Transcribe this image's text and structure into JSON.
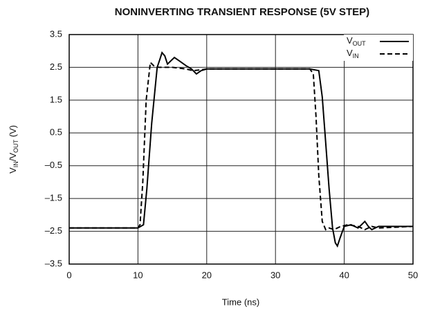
{
  "chart_data": {
    "type": "line",
    "title": "NONINVERTING TRANSIENT RESPONSE (5V STEP)",
    "xlabel": "Time (ns)",
    "ylabel": {
      "text": "V",
      "sub1": "IN",
      "mid": "/V",
      "sub2": "OUT",
      "tail": " (V)"
    },
    "xlim": [
      0,
      50
    ],
    "xticks": [
      0,
      10,
      20,
      30,
      40,
      50
    ],
    "ylim": [
      -3.5,
      3.5
    ],
    "yticks": [
      {
        "value": -3.5,
        "label": "–3.5"
      },
      {
        "value": -2.5,
        "label": "–2.5"
      },
      {
        "value": -1.5,
        "label": "–1.5"
      },
      {
        "value": -0.5,
        "label": "–0.5"
      },
      0.5,
      1.5,
      2.5,
      3.5
    ],
    "grid": true,
    "legend": "upper right",
    "series": [
      {
        "name": {
          "text": "V",
          "sub": "OUT"
        },
        "color": "#000000",
        "dash": "solid",
        "x": [
          0,
          5,
          10,
          10.8,
          11.3,
          12,
          12.8,
          13.2,
          13.5,
          13.9,
          14.3,
          14.8,
          15.3,
          16,
          17,
          17.8,
          18.5,
          19.2,
          20,
          25,
          30,
          35,
          36.3,
          36.8,
          37.3,
          37.8,
          38.3,
          38.7,
          39,
          39.4,
          40,
          41,
          42,
          42.5,
          43,
          43.5,
          44,
          45,
          50
        ],
        "values": [
          -2.4,
          -2.4,
          -2.4,
          -2.3,
          -1.2,
          0.8,
          2.5,
          2.75,
          2.95,
          2.85,
          2.6,
          2.7,
          2.8,
          2.7,
          2.55,
          2.45,
          2.3,
          2.4,
          2.45,
          2.45,
          2.45,
          2.45,
          2.4,
          1.6,
          0.2,
          -1.2,
          -2.4,
          -2.85,
          -2.95,
          -2.7,
          -2.35,
          -2.3,
          -2.4,
          -2.3,
          -2.2,
          -2.35,
          -2.45,
          -2.35,
          -2.35
        ]
      },
      {
        "name": {
          "text": "V",
          "sub": "IN"
        },
        "color": "#000000",
        "dash": "dashed",
        "x": [
          0,
          5,
          10,
          10.3,
          10.7,
          11.2,
          11.8,
          12.3,
          13,
          15,
          17,
          18,
          19,
          20,
          25,
          30,
          35,
          35.5,
          35.9,
          36.3,
          36.8,
          37.3,
          37.8,
          38.5,
          39.5,
          40.5,
          42,
          43,
          44,
          45,
          50
        ],
        "values": [
          -2.4,
          -2.4,
          -2.4,
          -2.3,
          -1.0,
          1.5,
          2.65,
          2.55,
          2.5,
          2.5,
          2.45,
          2.4,
          2.42,
          2.45,
          2.45,
          2.45,
          2.45,
          2.3,
          1.0,
          -0.8,
          -2.2,
          -2.45,
          -2.4,
          -2.45,
          -2.35,
          -2.3,
          -2.35,
          -2.45,
          -2.35,
          -2.4,
          -2.35
        ]
      }
    ]
  }
}
